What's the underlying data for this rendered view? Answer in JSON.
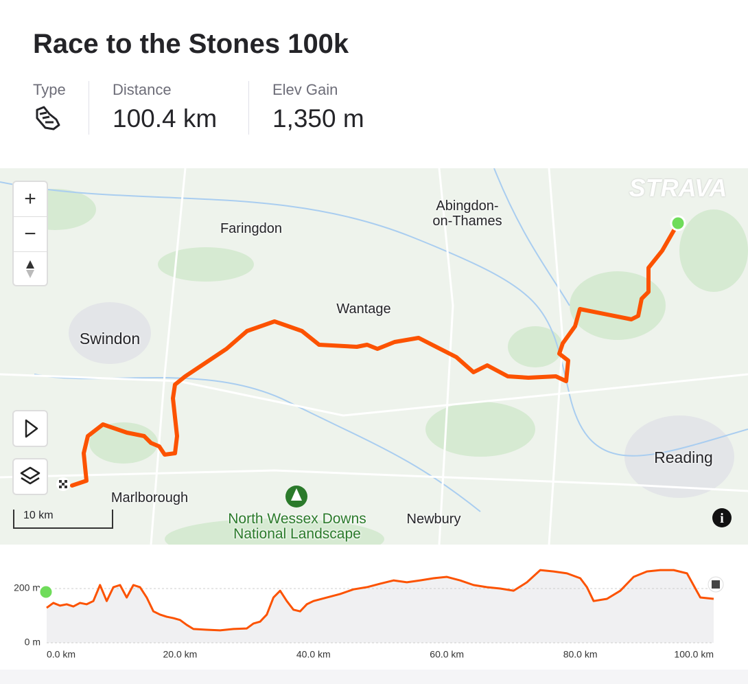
{
  "header": {
    "title": "Race to the Stones 100k"
  },
  "stats": [
    {
      "label": "Type"
    },
    {
      "label": "Distance",
      "value": "100.4 km"
    },
    {
      "label": "Elev Gain",
      "value": "1,350 m"
    }
  ],
  "map": {
    "logo": "STRAVA",
    "zoom_in": "+",
    "zoom_out": "−",
    "scale": "10 km",
    "places": {
      "faringdon": "Faringdon",
      "abingdon": [
        "Abingdon-",
        "on-Thames"
      ],
      "wantage": "Wantage",
      "swindon": "Swindon",
      "marlborough": "Marlborough",
      "park": [
        "North Wessex Downs",
        "National Landscape"
      ],
      "newbury": "Newbury",
      "reading": "Reading"
    }
  },
  "chart_data": {
    "type": "area",
    "color": "#fc5200",
    "x": [
      0,
      1,
      2,
      3,
      4,
      5,
      6,
      7,
      8,
      9,
      10,
      11,
      12,
      13,
      14,
      15,
      16,
      17,
      18,
      19,
      20,
      21,
      22,
      24,
      26,
      28,
      30,
      31,
      32,
      33,
      34,
      35,
      36,
      37,
      38,
      39,
      40,
      42,
      44,
      46,
      48,
      50,
      52,
      54,
      56,
      58,
      60,
      62,
      64,
      66,
      68,
      70,
      72,
      74,
      76,
      78,
      80,
      81,
      82,
      84,
      86,
      88,
      90,
      92,
      94,
      96,
      98,
      100
    ],
    "values": [
      129,
      147,
      137,
      142,
      134,
      147,
      142,
      154,
      213,
      154,
      205,
      213,
      167,
      213,
      205,
      167,
      116,
      104,
      96,
      91,
      84,
      66,
      51,
      48,
      46,
      51,
      53,
      71,
      78,
      104,
      167,
      192,
      154,
      122,
      116,
      142,
      154,
      167,
      180,
      197,
      205,
      218,
      230,
      223,
      230,
      238,
      243,
      230,
      213,
      205,
      200,
      192,
      223,
      268,
      263,
      256,
      238,
      205,
      154,
      162,
      192,
      243,
      263,
      268,
      268,
      256,
      167,
      162
    ],
    "xlim": [
      0,
      100
    ],
    "ylim": [
      0,
      300
    ],
    "xticks": [
      {
        "value": 0,
        "label": "0.0 km"
      },
      {
        "value": 20,
        "label": "20.0 km"
      },
      {
        "value": 40,
        "label": "40.0 km"
      },
      {
        "value": 60,
        "label": "60.0 km"
      },
      {
        "value": 80,
        "label": "80.0 km"
      },
      {
        "value": 100,
        "label": "100.0 km"
      }
    ],
    "yticks": [
      {
        "value": 0,
        "label": "0 m"
      },
      {
        "value": 200,
        "label": "200 m"
      }
    ],
    "grid": true
  }
}
